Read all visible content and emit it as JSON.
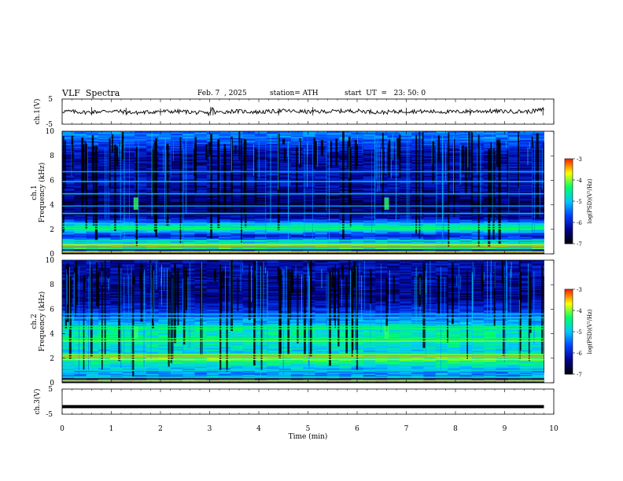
{
  "header": {
    "title": "VLF  Spectra",
    "date": "Feb. 7  , 2025",
    "station": "station= ATH",
    "start": "start  UT  =   23: 50: 0"
  },
  "chart_data": [
    {
      "type": "line",
      "panel": "ch1-waveform",
      "ylabel": "ch.1(V)",
      "ylim": [
        -5,
        5
      ],
      "yticks": [
        "5",
        "-5"
      ],
      "x": [
        0,
        0.5,
        1,
        1.5,
        2,
        2.5,
        3,
        3.05,
        3.1,
        3.5,
        4,
        4.5,
        5,
        5.5,
        6,
        6.5,
        7,
        7.5,
        8,
        8.5,
        9,
        9.5,
        9.8
      ],
      "values": [
        0.2,
        -0.3,
        0.3,
        -0.5,
        0.1,
        0.0,
        -0.8,
        1.6,
        -0.4,
        0.2,
        -0.2,
        0.3,
        -0.1,
        0.1,
        0.3,
        -0.3,
        0.2,
        0.0,
        -0.1,
        0.2,
        0.1,
        0.0,
        0.8
      ]
    },
    {
      "type": "heatmap",
      "panel": "ch1-spectrogram",
      "ylabel": "ch.1\nFrequency  (kHz)",
      "ylim": [
        0,
        10
      ],
      "yticks": [
        "0",
        "2",
        "4",
        "6",
        "8",
        "10"
      ],
      "colorbar": {
        "label": "log(PSD)(V²/Hz)",
        "range": [
          -7,
          -3
        ],
        "ticks": [
          "-3",
          "-4",
          "-5",
          "-6",
          "-7"
        ]
      },
      "profile_hz_khz": [
        {
          "f": 0.0,
          "psd": -6.6
        },
        {
          "f": 0.5,
          "psd": -4.2
        },
        {
          "f": 1.0,
          "psd": -5.0
        },
        {
          "f": 1.5,
          "psd": -6.0
        },
        {
          "f": 2.0,
          "psd": -4.6
        },
        {
          "f": 2.3,
          "psd": -4.8
        },
        {
          "f": 3.0,
          "psd": -6.2
        },
        {
          "f": 4.0,
          "psd": -6.6
        },
        {
          "f": 5.0,
          "psd": -6.3
        },
        {
          "f": 6.0,
          "psd": -6.1
        },
        {
          "f": 8.0,
          "psd": -6.3
        },
        {
          "f": 9.5,
          "psd": -5.4
        }
      ]
    },
    {
      "type": "heatmap",
      "panel": "ch2-spectrogram",
      "ylabel": "ch.2\nFrequency  (kHz)",
      "ylim": [
        0,
        10
      ],
      "yticks": [
        "0",
        "2",
        "4",
        "6",
        "8",
        "10"
      ],
      "colorbar": {
        "label": "log(PSD)(V²/Hz)",
        "range": [
          -7,
          -3
        ],
        "ticks": [
          "-3",
          "-4",
          "-5",
          "-6",
          "-7"
        ]
      },
      "profile_hz_khz": [
        {
          "f": 0.0,
          "psd": -5.4
        },
        {
          "f": 1.0,
          "psd": -5.2
        },
        {
          "f": 2.0,
          "psd": -4.2
        },
        {
          "f": 2.5,
          "psd": -4.9
        },
        {
          "f": 3.5,
          "psd": -4.6
        },
        {
          "f": 4.5,
          "psd": -4.7
        },
        {
          "f": 5.5,
          "psd": -5.6
        },
        {
          "f": 7.0,
          "psd": -6.4
        },
        {
          "f": 9.0,
          "psd": -6.2
        }
      ]
    },
    {
      "type": "line",
      "panel": "ch3-waveform",
      "ylabel": "ch.3(V)",
      "ylim": [
        -5,
        5
      ],
      "yticks": [
        "5",
        "-5"
      ],
      "x": [
        0,
        9.8
      ],
      "values": [
        -2,
        -2
      ]
    }
  ],
  "time_axis": {
    "xlabel": "Time  (min)",
    "xlim": [
      0,
      10
    ],
    "ticks": [
      "0",
      "1",
      "2",
      "3",
      "4",
      "5",
      "6",
      "7",
      "8",
      "9",
      "10"
    ]
  },
  "colors": {
    "colormap": [
      "#000000",
      "#00008b",
      "#0040ff",
      "#00c8ff",
      "#00ff66",
      "#ffff00",
      "#ff2000",
      "#ffffff"
    ]
  }
}
